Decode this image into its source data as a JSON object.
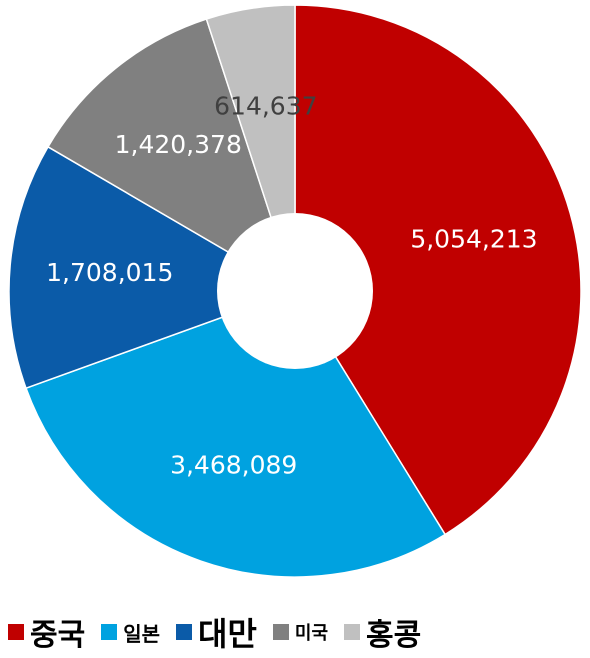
{
  "chart_data": {
    "type": "pie",
    "categories": [
      "중국",
      "일본",
      "대만",
      "미국",
      "홍콩"
    ],
    "values": [
      5054213,
      3468089,
      1708015,
      1420378,
      614637
    ],
    "value_labels": [
      "5,054,213",
      "3,468,089",
      "1,708,015",
      "1,420,378",
      "614,637"
    ],
    "colors": [
      "#C00000",
      "#00A2E0",
      "#0B5BA8",
      "#808080",
      "#C0C0C0"
    ],
    "label_colors": [
      "#ffffff",
      "#ffffff",
      "#ffffff",
      "#ffffff",
      "#404040"
    ],
    "start_angle_deg": 0,
    "direction": "clockwise",
    "donut": true,
    "legend_position": "bottom"
  }
}
